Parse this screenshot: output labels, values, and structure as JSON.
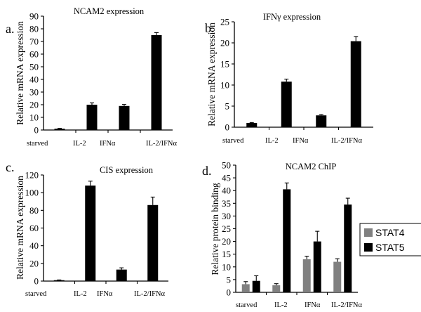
{
  "chart_data": [
    {
      "panel": "a.",
      "type": "bar",
      "title": "NCAM2 expression",
      "ylabel": "Relative mRNA expression",
      "categories": [
        "starved",
        "IL-2",
        "IFNα",
        "IL-2/IFNα"
      ],
      "values": [
        1,
        20,
        19,
        75
      ],
      "errors": [
        0.3,
        1.5,
        1.2,
        2
      ],
      "ylim": [
        0,
        90
      ],
      "yticks": [
        0,
        10,
        20,
        30,
        40,
        50,
        60,
        70,
        80,
        90
      ],
      "color": "#000000"
    },
    {
      "panel": "b.",
      "type": "bar",
      "title": "IFNγ expression",
      "ylabel": "Relative mRNA expression",
      "categories": [
        "starved",
        "IL-2",
        "IFNα",
        "IL-2/IFNα"
      ],
      "values": [
        1,
        10.8,
        2.8,
        20.4
      ],
      "errors": [
        0.1,
        0.6,
        0.2,
        1.1
      ],
      "ylim": [
        0,
        25
      ],
      "yticks": [
        0,
        5,
        10,
        15,
        20,
        25
      ],
      "color": "#000000"
    },
    {
      "panel": "c.",
      "type": "bar",
      "title": "CIS expression",
      "ylabel": "Relative mRNA expression",
      "categories": [
        "starved",
        "IL-2",
        "IFNα",
        "IL-2/IFNα"
      ],
      "values": [
        1,
        108,
        13,
        86
      ],
      "errors": [
        0.3,
        5,
        2,
        9
      ],
      "ylim": [
        0,
        120
      ],
      "yticks": [
        0,
        20,
        40,
        60,
        80,
        100,
        120
      ],
      "color": "#000000"
    },
    {
      "panel": "d.",
      "type": "bar",
      "title": "NCAM2 ChIP",
      "ylabel": "Relative protein binding",
      "categories": [
        "starved",
        "IL-2",
        "IFNα",
        "IL-2/IFNα"
      ],
      "ylim": [
        0,
        50
      ],
      "yticks": [
        0,
        5,
        10,
        15,
        20,
        25,
        30,
        35,
        40,
        45,
        50
      ],
      "legend_position": "right",
      "series": [
        {
          "name": "STAT4",
          "values": [
            3.2,
            2.8,
            13,
            12
          ],
          "errors": [
            1,
            0.6,
            1.2,
            1.2
          ],
          "color": "#808080"
        },
        {
          "name": "STAT5",
          "values": [
            4.5,
            40.5,
            20,
            34.5
          ],
          "errors": [
            2,
            2.5,
            4,
            2.5
          ],
          "color": "#000000"
        }
      ]
    }
  ]
}
